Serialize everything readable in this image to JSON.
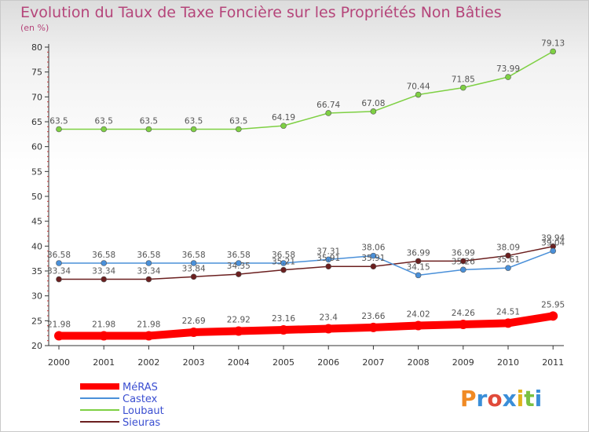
{
  "title": "Evolution du Taux de Taxe Foncière sur les Propriétés Non Bâties",
  "unit": "(en %)",
  "logo": "Proxiti",
  "chart_data": {
    "type": "line",
    "title": "Evolution du Taux de Taxe Foncière sur les Propriétés Non Bâties",
    "ylabel": "(en %)",
    "xlabel": "",
    "ylim": [
      20,
      80
    ],
    "yticks": [
      20,
      25,
      30,
      35,
      40,
      45,
      50,
      55,
      60,
      65,
      70,
      75,
      80
    ],
    "grid": false,
    "legend_position": "bottom-left",
    "x": [
      "2000",
      "2001",
      "2002",
      "2003",
      "2004",
      "2005",
      "2006",
      "2007",
      "2008",
      "2009",
      "2010",
      "2011"
    ],
    "series": [
      {
        "name": "MéRAS",
        "color": "#ff0000",
        "values": [
          21.98,
          21.98,
          21.98,
          22.69,
          22.92,
          23.16,
          23.4,
          23.66,
          24.02,
          24.26,
          24.51,
          25.95
        ],
        "labels": [
          "21.98",
          "21.98",
          "21.98",
          "22.69",
          "22.92",
          "23.16",
          "23.4",
          "23.66",
          "24.02",
          "24.26",
          "24.51",
          "25.95"
        ]
      },
      {
        "name": "Castex",
        "color": "#4a90d9",
        "values": [
          36.58,
          36.58,
          36.58,
          36.58,
          36.58,
          36.58,
          37.31,
          38.06,
          34.15,
          35.26,
          35.61,
          39.04
        ],
        "labels": [
          "36.58",
          "36.58",
          "36.58",
          "36.58",
          "36.58",
          "36.58",
          "37.31",
          "38.06",
          "34.15",
          "35.26",
          "35.61",
          "39.04"
        ]
      },
      {
        "name": "Loubaut",
        "color": "#7ed043",
        "values": [
          63.5,
          63.5,
          63.5,
          63.5,
          63.5,
          64.19,
          66.74,
          67.08,
          70.44,
          71.85,
          73.99,
          79.13
        ],
        "labels": [
          "63.5",
          "63.5",
          "63.5",
          "63.5",
          "63.5",
          "64.19",
          "66.74",
          "67.08",
          "70.44",
          "71.85",
          "73.99",
          "79.13"
        ]
      },
      {
        "name": "Sieuras",
        "color": "#6b1f1f",
        "values": [
          33.34,
          33.34,
          33.34,
          33.84,
          34.35,
          35.21,
          35.91,
          35.91,
          36.99,
          36.99,
          38.09,
          39.94
        ],
        "labels": [
          "33.34",
          "33.34",
          "33.34",
          "33.84",
          "34.35",
          "35.21",
          "35.91",
          "35.91",
          "36.99",
          "36.99",
          "38.09",
          "39.94"
        ]
      }
    ]
  }
}
